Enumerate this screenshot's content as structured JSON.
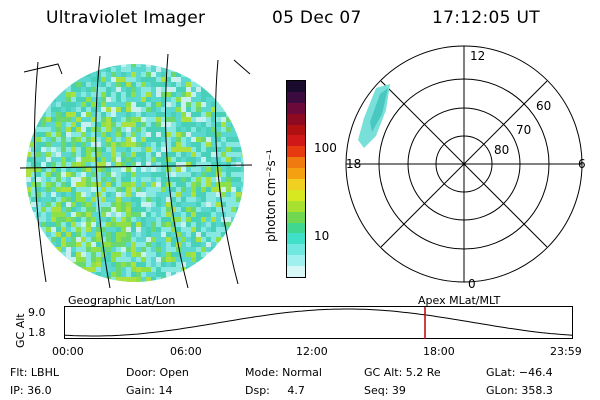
{
  "header": {
    "instrument": "Ultraviolet Imager",
    "date": "05 Dec 07",
    "time": "17:12:05 UT"
  },
  "colorbar": {
    "unit_label": "photon cm⁻²s⁻¹",
    "ticks": [
      "100",
      "10"
    ],
    "colors": [
      "#1a0a2e",
      "#3b0a3e",
      "#6b0a3a",
      "#8e0a20",
      "#b01010",
      "#d01818",
      "#e83a10",
      "#f07a10",
      "#f5a010",
      "#f0d020",
      "#d8e820",
      "#a8e030",
      "#70d850",
      "#40d890",
      "#40e0c8",
      "#70e8e0",
      "#a0f0f0",
      "#d8f8f8"
    ],
    "heat_colors": [
      "#86e8e0",
      "#5ad8d0",
      "#48d0b8",
      "#6ad870",
      "#8ee048",
      "#aae040",
      "#c8f0f0",
      "#38c8c0"
    ]
  },
  "left_map": {
    "caption": "Geographic Lat/Lon"
  },
  "right_polar": {
    "caption": "Apex  MLat/MLT",
    "mlt_labels": {
      "top": "12",
      "right": "6",
      "bottom": "0",
      "left": "18"
    },
    "ring_labels": [
      "60",
      "70",
      "80"
    ]
  },
  "timeline": {
    "axis_label": "GC Alt",
    "y_ticks": [
      "9.0",
      "1.8"
    ],
    "x_ticks": [
      "00:00",
      "06:00",
      "12:00",
      "18:00",
      "23:59"
    ],
    "current_marker_color": "#c00000"
  },
  "status": {
    "row1": [
      {
        "name": "filter",
        "text": "Flt: LBHL"
      },
      {
        "name": "door",
        "text": "Door: Open"
      },
      {
        "name": "mode",
        "text": "Mode: Normal"
      },
      {
        "name": "gc-alt",
        "text": "GC Alt: 5.2 Re"
      },
      {
        "name": "glat",
        "text": "GLat: −46.4"
      }
    ],
    "row2": [
      {
        "name": "ip",
        "text": "IP: 36.0"
      },
      {
        "name": "gain",
        "text": "Gain: 14"
      },
      {
        "name": "dsp",
        "text": "Dsp:     4.7"
      },
      {
        "name": "seq",
        "text": "Seq: 39"
      },
      {
        "name": "glon",
        "text": "GLon: 358.3"
      }
    ]
  }
}
